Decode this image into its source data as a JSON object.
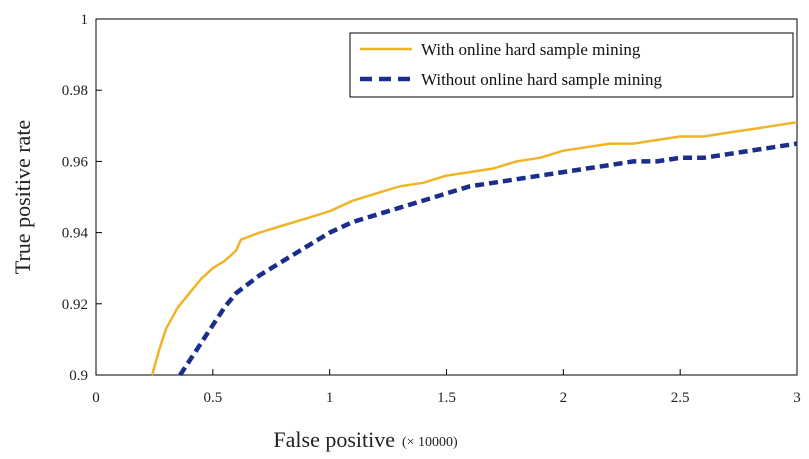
{
  "chart_data": {
    "type": "line",
    "xlabel": "False positive",
    "xlabel_unit": "(× 10000)",
    "ylabel": "True positive rate",
    "xlim": [
      0,
      3
    ],
    "ylim": [
      0.9,
      1
    ],
    "x_ticks": [
      "0",
      "0.5",
      "1",
      "1.5",
      "2",
      "2.5",
      "3"
    ],
    "y_ticks": [
      "0.9",
      "0.92",
      "0.94",
      "0.96",
      "0.98",
      "1"
    ],
    "legend_position": "top-right",
    "grid": false,
    "series": [
      {
        "name": "With online hard sample mining",
        "color": "#F0B429",
        "style": "solid",
        "x": [
          0.24,
          0.27,
          0.3,
          0.35,
          0.4,
          0.45,
          0.5,
          0.55,
          0.6,
          0.62,
          0.7,
          0.8,
          0.9,
          1.0,
          1.1,
          1.2,
          1.3,
          1.4,
          1.5,
          1.6,
          1.7,
          1.8,
          1.9,
          2.0,
          2.1,
          2.2,
          2.3,
          2.4,
          2.5,
          2.6,
          2.7,
          2.8,
          2.9,
          3.0
        ],
        "y": [
          0.9,
          0.907,
          0.913,
          0.919,
          0.923,
          0.927,
          0.93,
          0.932,
          0.935,
          0.938,
          0.94,
          0.942,
          0.944,
          0.946,
          0.949,
          0.951,
          0.953,
          0.954,
          0.956,
          0.957,
          0.958,
          0.96,
          0.961,
          0.963,
          0.964,
          0.965,
          0.965,
          0.966,
          0.967,
          0.967,
          0.968,
          0.969,
          0.97,
          0.971
        ]
      },
      {
        "name": "Without online hard sample mining",
        "color": "#1A2E8C",
        "style": "dashed",
        "x": [
          0.36,
          0.4,
          0.45,
          0.5,
          0.55,
          0.6,
          0.7,
          0.8,
          0.9,
          1.0,
          1.1,
          1.2,
          1.3,
          1.4,
          1.5,
          1.6,
          1.7,
          1.8,
          1.9,
          2.0,
          2.1,
          2.2,
          2.3,
          2.4,
          2.5,
          2.6,
          2.7,
          2.8,
          2.9,
          3.0
        ],
        "y": [
          0.9,
          0.904,
          0.909,
          0.914,
          0.919,
          0.923,
          0.928,
          0.932,
          0.936,
          0.94,
          0.943,
          0.945,
          0.947,
          0.949,
          0.951,
          0.953,
          0.954,
          0.955,
          0.956,
          0.957,
          0.958,
          0.959,
          0.96,
          0.96,
          0.961,
          0.961,
          0.962,
          0.963,
          0.964,
          0.965
        ]
      }
    ]
  }
}
